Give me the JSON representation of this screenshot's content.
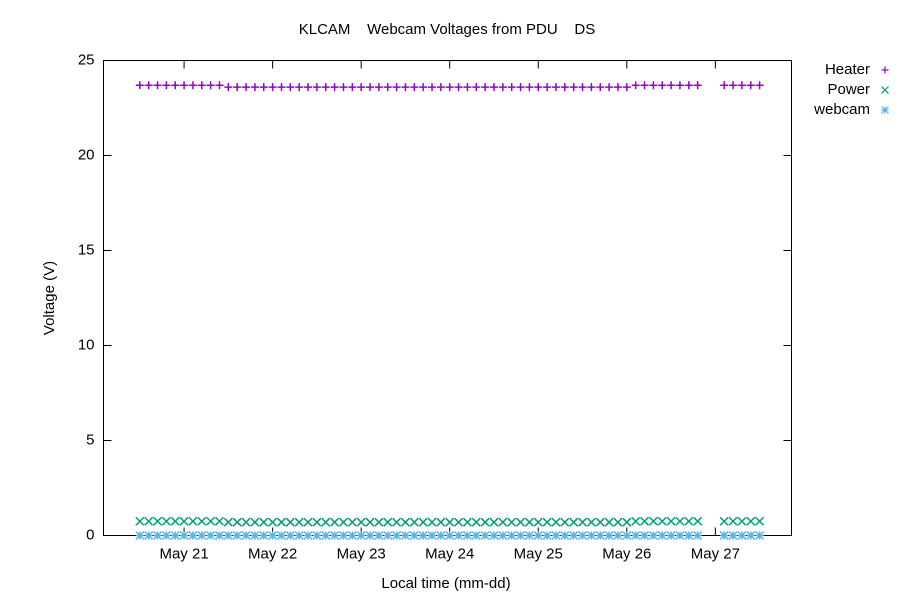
{
  "chart_data": {
    "type": "scatter",
    "title": "KLCAM    Webcam Voltages from PDU    DS",
    "x_label": "Local time (mm-dd)",
    "y_label": "Voltage (V)",
    "xlim": [
      20.09,
      27.86
    ],
    "ylim": [
      0,
      25
    ],
    "xticks": [
      {
        "value": 21,
        "label": "May 21"
      },
      {
        "value": 22,
        "label": "May 22"
      },
      {
        "value": 23,
        "label": "May 23"
      },
      {
        "value": 24,
        "label": "May 24"
      },
      {
        "value": 25,
        "label": "May 25"
      },
      {
        "value": 26,
        "label": "May 26"
      },
      {
        "value": 27,
        "label": "May 27"
      }
    ],
    "yticks": [
      0,
      5,
      10,
      15,
      20,
      25
    ],
    "legend": "top-right",
    "x": [
      20.5,
      20.6,
      20.7,
      20.8,
      20.9,
      21.0,
      21.1,
      21.2,
      21.3,
      21.4,
      21.5,
      21.6,
      21.7,
      21.8,
      21.9,
      22.0,
      22.1,
      22.2,
      22.3,
      22.4,
      22.5,
      22.6,
      22.7,
      22.8,
      22.9,
      23.0,
      23.1,
      23.2,
      23.3,
      23.4,
      23.5,
      23.6,
      23.7,
      23.8,
      23.9,
      24.0,
      24.1,
      24.2,
      24.3,
      24.4,
      24.5,
      24.6,
      24.7,
      24.8,
      24.9,
      25.0,
      25.1,
      25.2,
      25.3,
      25.4,
      25.5,
      25.6,
      25.7,
      25.8,
      25.9,
      26.0,
      26.1,
      26.2,
      26.3,
      26.4,
      26.5,
      26.6,
      26.7,
      26.8,
      27.1,
      27.2,
      27.3,
      27.4,
      27.5
    ],
    "series": [
      {
        "name": "Heater",
        "color": "#9400d3",
        "marker": "plus",
        "values": [
          23.7,
          23.7,
          23.7,
          23.7,
          23.7,
          23.7,
          23.7,
          23.7,
          23.7,
          23.7,
          23.6,
          23.6,
          23.6,
          23.6,
          23.6,
          23.6,
          23.6,
          23.6,
          23.6,
          23.6,
          23.6,
          23.6,
          23.6,
          23.6,
          23.6,
          23.6,
          23.6,
          23.6,
          23.6,
          23.6,
          23.6,
          23.6,
          23.6,
          23.6,
          23.6,
          23.6,
          23.6,
          23.6,
          23.6,
          23.6,
          23.6,
          23.6,
          23.6,
          23.6,
          23.6,
          23.6,
          23.6,
          23.6,
          23.6,
          23.6,
          23.6,
          23.6,
          23.6,
          23.6,
          23.6,
          23.6,
          23.7,
          23.7,
          23.7,
          23.7,
          23.7,
          23.7,
          23.7,
          23.7,
          23.7,
          23.7,
          23.7,
          23.7,
          23.7
        ]
      },
      {
        "name": "Power",
        "color": "#009e73",
        "marker": "cross",
        "values": [
          0.75,
          0.75,
          0.75,
          0.75,
          0.75,
          0.75,
          0.75,
          0.75,
          0.75,
          0.75,
          0.7,
          0.7,
          0.7,
          0.7,
          0.7,
          0.7,
          0.7,
          0.7,
          0.7,
          0.7,
          0.7,
          0.7,
          0.7,
          0.7,
          0.7,
          0.7,
          0.7,
          0.7,
          0.7,
          0.7,
          0.7,
          0.7,
          0.7,
          0.7,
          0.7,
          0.7,
          0.7,
          0.7,
          0.7,
          0.7,
          0.7,
          0.7,
          0.7,
          0.7,
          0.7,
          0.7,
          0.7,
          0.7,
          0.7,
          0.7,
          0.7,
          0.7,
          0.7,
          0.7,
          0.7,
          0.7,
          0.75,
          0.75,
          0.75,
          0.75,
          0.75,
          0.75,
          0.75,
          0.75,
          0.75,
          0.75,
          0.75,
          0.75,
          0.75
        ]
      },
      {
        "name": "webcam",
        "color": "#56b4e9",
        "marker": "star",
        "values": [
          0,
          0,
          0,
          0,
          0,
          0,
          0,
          0,
          0,
          0,
          0,
          0,
          0,
          0,
          0,
          0,
          0,
          0,
          0,
          0,
          0,
          0,
          0,
          0,
          0,
          0,
          0,
          0,
          0,
          0,
          0,
          0,
          0,
          0,
          0,
          0,
          0,
          0,
          0,
          0,
          0,
          0,
          0,
          0,
          0,
          0,
          0,
          0,
          0,
          0,
          0,
          0,
          0,
          0,
          0,
          0,
          0,
          0,
          0,
          0,
          0,
          0,
          0,
          0,
          0,
          0,
          0,
          0,
          0
        ]
      }
    ]
  }
}
